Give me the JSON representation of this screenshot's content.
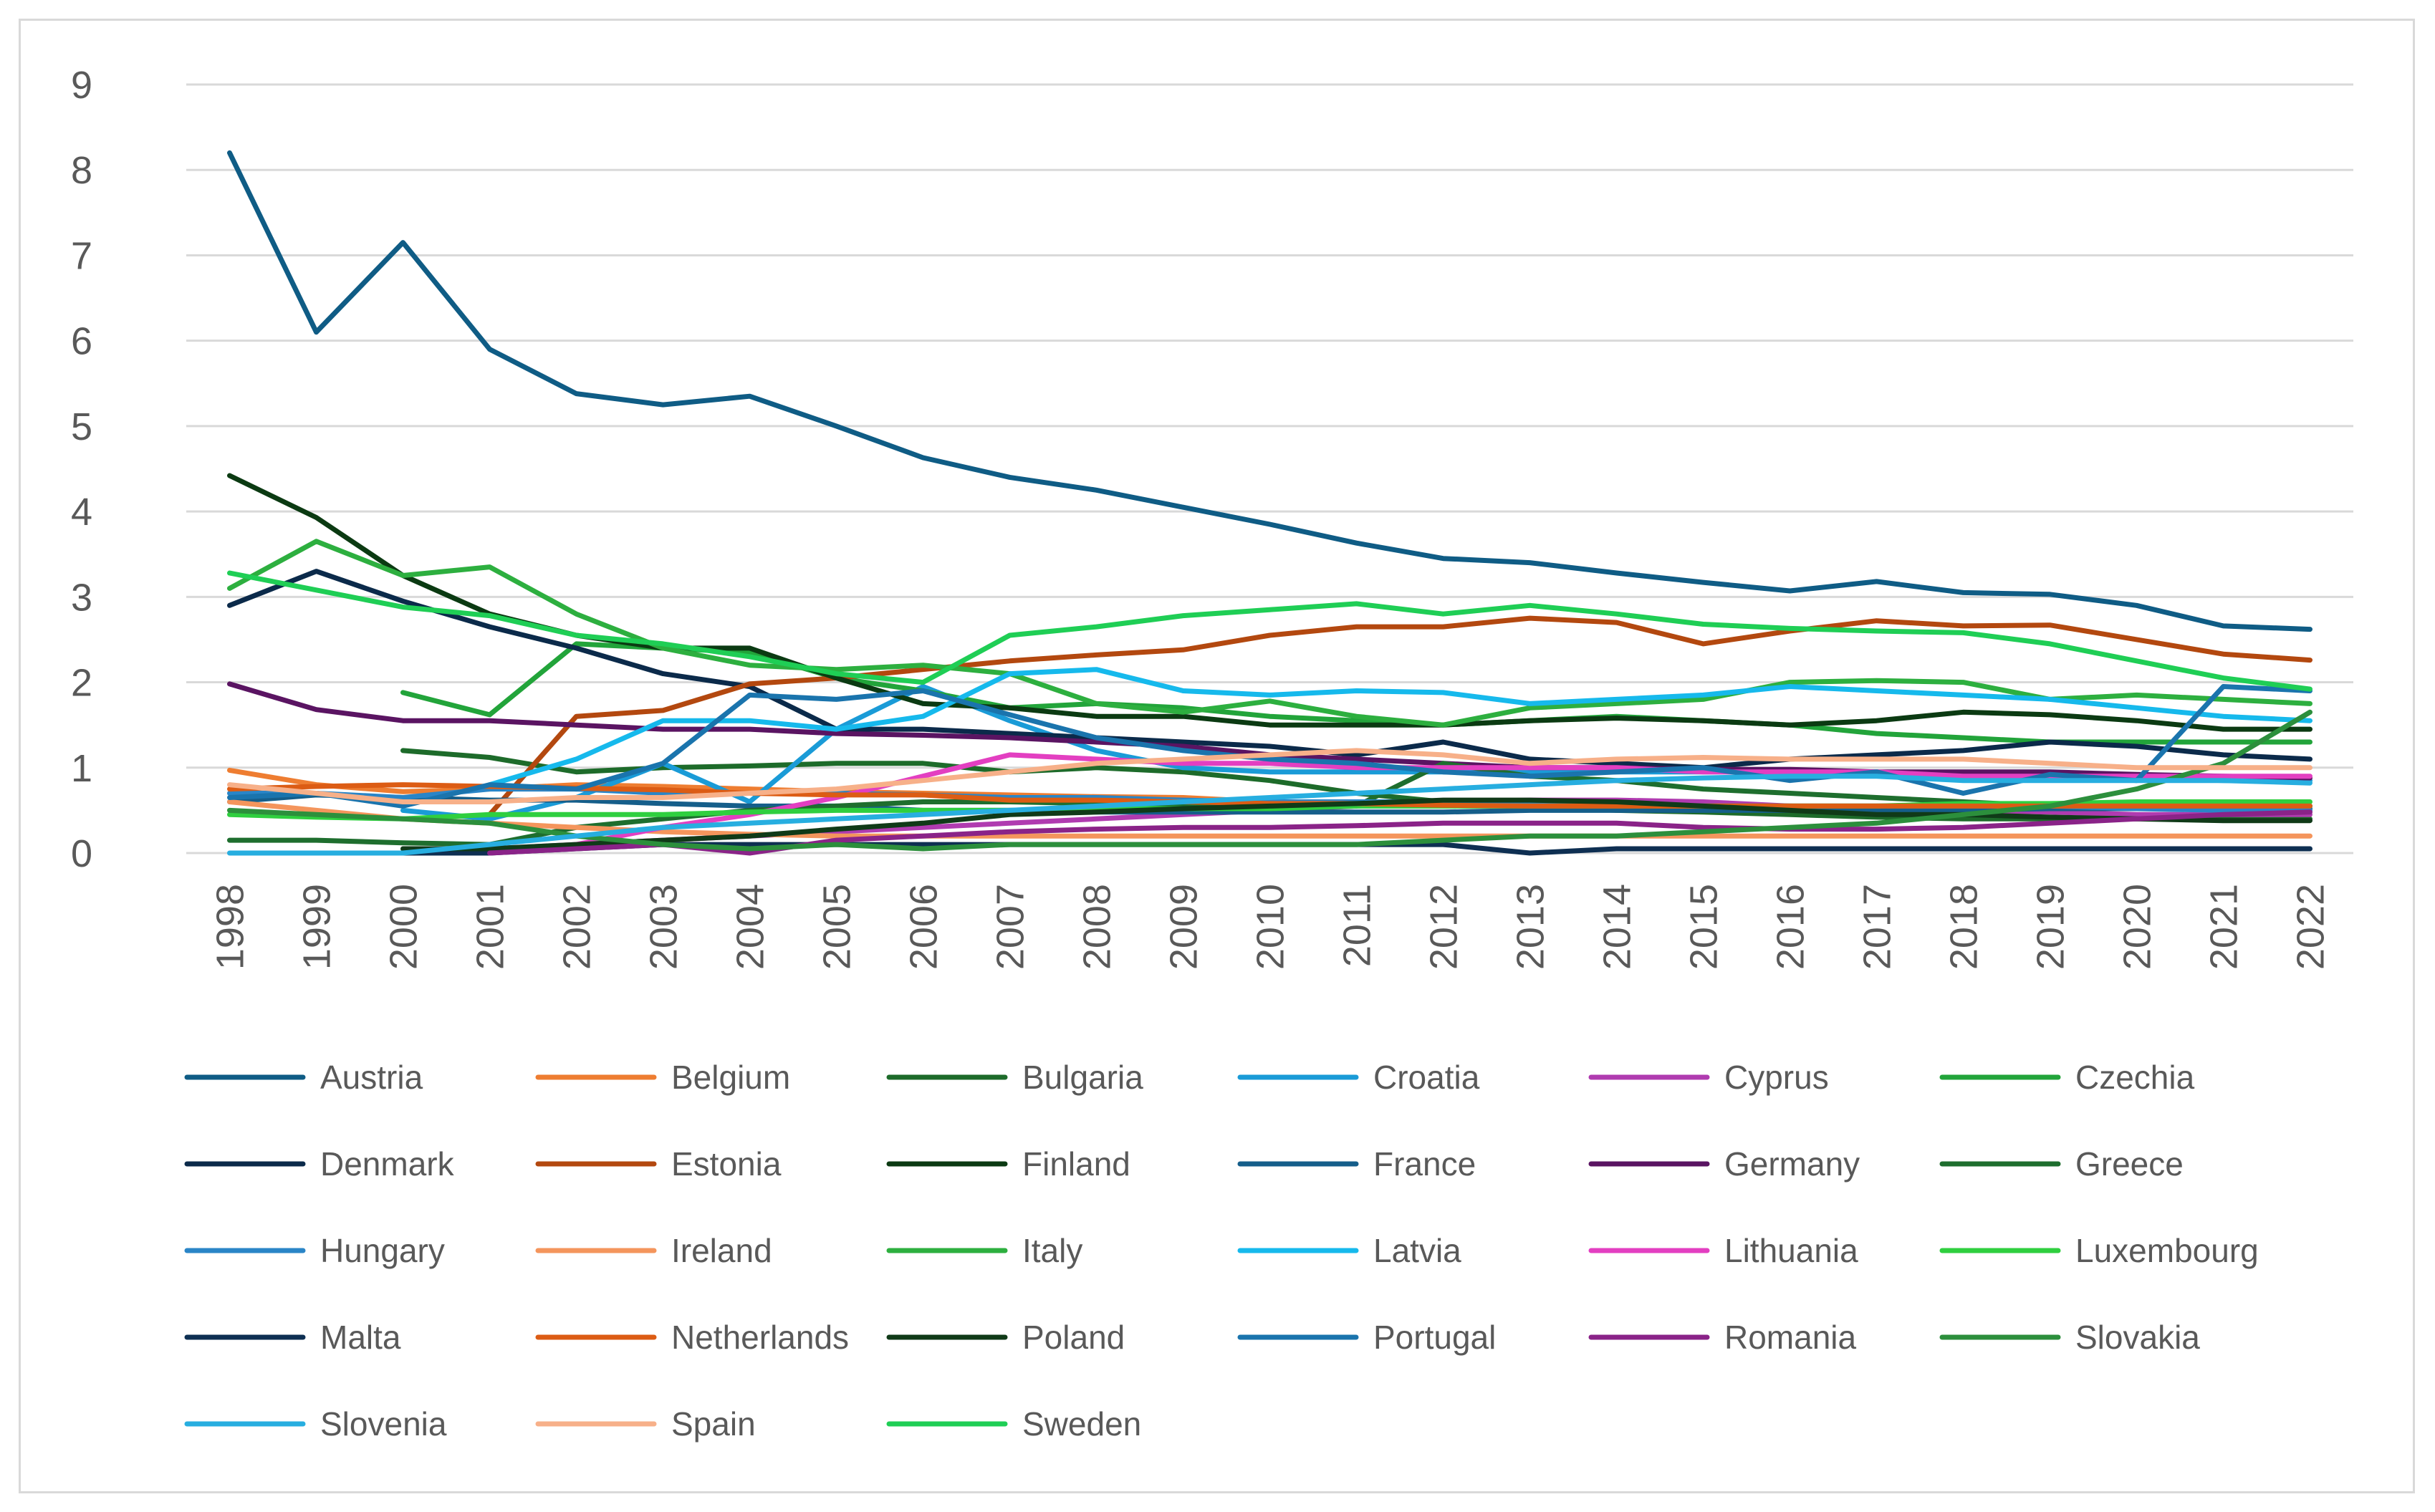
{
  "chart_data": {
    "type": "line",
    "title": "",
    "xlabel": "",
    "ylabel": "",
    "ylim": [
      0,
      9
    ],
    "y_ticks": [
      "0",
      "1",
      "2",
      "3",
      "4",
      "5",
      "6",
      "7",
      "8",
      "9"
    ],
    "x": [
      "1998",
      "1999",
      "2000",
      "2001",
      "2002",
      "2003",
      "2004",
      "2005",
      "2006",
      "2007",
      "2008",
      "2009",
      "2010",
      "2011",
      "2012",
      "2013",
      "2014",
      "2015",
      "2016",
      "2017",
      "2018",
      "2019",
      "2020",
      "2021",
      "2022"
    ],
    "grid": true,
    "legend_position": "bottom",
    "series": [
      {
        "name": "Austria",
        "color": "#0f5c85",
        "values": [
          8.2,
          6.1,
          7.15,
          5.9,
          5.38,
          5.25,
          5.35,
          5.0,
          4.63,
          4.4,
          4.25,
          4.05,
          3.85,
          3.63,
          3.45,
          3.4,
          3.28,
          3.17,
          3.07,
          3.18,
          3.05,
          3.03,
          2.9,
          2.66,
          2.62
        ]
      },
      {
        "name": "Belgium",
        "color": "#ee7d31",
        "values": [
          0.97,
          0.8,
          0.72,
          0.75,
          0.8,
          0.78,
          0.75,
          0.72,
          0.7,
          0.68,
          0.66,
          0.65,
          0.6,
          0.58,
          0.57,
          0.56,
          0.56,
          0.55,
          0.55,
          0.55,
          0.55,
          0.55,
          0.55,
          0.55,
          0.55
        ]
      },
      {
        "name": "Bulgaria",
        "color": "#1d6b2a",
        "values": [
          null,
          null,
          1.2,
          1.12,
          0.95,
          1.0,
          1.02,
          1.05,
          1.05,
          0.95,
          1.0,
          0.95,
          0.85,
          0.7,
          0.6,
          0.55,
          0.5,
          0.48,
          0.45,
          0.42,
          0.4,
          0.4,
          0.4,
          0.4,
          0.4
        ]
      },
      {
        "name": "Croatia",
        "color": "#1a9bd7",
        "values": [
          null,
          null,
          0.5,
          0.4,
          0.65,
          1.05,
          0.6,
          1.45,
          1.95,
          1.55,
          1.2,
          1.0,
          0.95,
          0.95,
          0.95,
          0.95,
          0.95,
          0.95,
          0.95,
          0.92,
          0.9,
          0.9,
          0.88,
          0.85,
          0.85
        ]
      },
      {
        "name": "Cyprus",
        "color": "#b03bb0",
        "values": [
          null,
          null,
          null,
          0.05,
          0.1,
          0.15,
          0.2,
          0.25,
          0.3,
          0.35,
          0.4,
          0.45,
          0.5,
          0.55,
          0.6,
          0.62,
          0.62,
          0.6,
          0.55,
          0.52,
          0.5,
          0.48,
          0.45,
          0.45,
          0.45
        ]
      },
      {
        "name": "Czechia",
        "color": "#22a43a",
        "values": [
          null,
          null,
          1.88,
          1.62,
          2.45,
          2.4,
          2.35,
          2.05,
          1.9,
          1.7,
          1.75,
          1.7,
          1.6,
          1.55,
          1.5,
          1.55,
          1.6,
          1.55,
          1.5,
          1.4,
          1.35,
          1.3,
          1.3,
          1.3,
          1.3
        ]
      },
      {
        "name": "Denmark",
        "color": "#0b2a4a",
        "values": [
          2.9,
          3.3,
          2.95,
          2.65,
          2.4,
          2.1,
          1.95,
          1.45,
          1.45,
          1.4,
          1.35,
          1.3,
          1.25,
          1.15,
          1.3,
          1.1,
          1.05,
          1.0,
          1.1,
          1.15,
          1.2,
          1.3,
          1.25,
          1.15,
          1.1
        ]
      },
      {
        "name": "Estonia",
        "color": "#b3480f",
        "values": [
          null,
          null,
          null,
          0.45,
          1.6,
          1.67,
          1.98,
          2.05,
          2.15,
          2.25,
          2.32,
          2.38,
          2.55,
          2.65,
          2.65,
          2.75,
          2.7,
          2.45,
          2.6,
          2.72,
          2.66,
          2.67,
          2.5,
          2.33,
          2.26
        ]
      },
      {
        "name": "Finland",
        "color": "#0b3a12",
        "values": [
          4.42,
          3.93,
          3.25,
          2.8,
          2.55,
          2.4,
          2.4,
          2.05,
          1.75,
          1.7,
          1.6,
          1.6,
          1.5,
          1.5,
          1.5,
          1.55,
          1.58,
          1.55,
          1.5,
          1.55,
          1.65,
          1.62,
          1.55,
          1.45,
          1.45
        ]
      },
      {
        "name": "France",
        "color": "#155e8a",
        "values": [
          0.6,
          0.68,
          0.65,
          0.62,
          0.62,
          0.58,
          0.55,
          0.55,
          0.5,
          0.5,
          0.48,
          0.48,
          0.48,
          0.48,
          0.48,
          0.5,
          0.5,
          0.5,
          0.5,
          0.5,
          0.5,
          0.52,
          0.52,
          0.52,
          0.52
        ]
      },
      {
        "name": "Germany",
        "color": "#5a1462",
        "values": [
          1.98,
          1.68,
          1.55,
          1.55,
          1.5,
          1.45,
          1.45,
          1.4,
          1.38,
          1.35,
          1.3,
          1.25,
          1.15,
          1.1,
          1.05,
          1.0,
          1.0,
          0.98,
          0.98,
          0.95,
          0.95,
          0.95,
          0.92,
          0.9,
          0.88
        ]
      },
      {
        "name": "Greece",
        "color": "#1e6e2e",
        "values": [
          0.15,
          0.15,
          0.12,
          0.1,
          0.3,
          0.4,
          0.5,
          0.55,
          0.6,
          0.6,
          0.58,
          0.55,
          0.55,
          0.55,
          1.05,
          0.9,
          0.85,
          0.75,
          0.7,
          0.65,
          0.6,
          0.55,
          0.55,
          0.55,
          0.55
        ]
      },
      {
        "name": "Hungary",
        "color": "#2a85c7",
        "values": [
          0.7,
          0.7,
          0.65,
          0.75,
          0.75,
          0.7,
          0.7,
          0.7,
          0.68,
          0.65,
          0.65,
          0.62,
          0.6,
          0.6,
          0.6,
          0.6,
          0.58,
          0.55,
          0.55,
          0.55,
          0.55,
          0.55,
          0.52,
          0.5,
          0.5
        ]
      },
      {
        "name": "Ireland",
        "color": "#f4955c",
        "values": [
          0.6,
          0.5,
          0.4,
          0.35,
          0.3,
          0.25,
          0.22,
          0.2,
          0.2,
          0.2,
          0.2,
          0.2,
          0.2,
          0.2,
          0.2,
          0.2,
          0.2,
          0.2,
          0.2,
          0.2,
          0.2,
          0.2,
          0.2,
          0.2,
          0.2
        ]
      },
      {
        "name": "Italy",
        "color": "#2daf3f",
        "values": [
          3.1,
          3.65,
          3.25,
          3.35,
          2.8,
          2.4,
          2.2,
          2.15,
          2.2,
          2.1,
          1.75,
          1.65,
          1.78,
          1.6,
          1.5,
          1.7,
          1.75,
          1.8,
          2.0,
          2.02,
          2.0,
          1.8,
          1.85,
          1.8,
          1.75
        ]
      },
      {
        "name": "Latvia",
        "color": "#16b9ec",
        "values": [
          null,
          null,
          null,
          0.8,
          1.1,
          1.55,
          1.55,
          1.45,
          1.6,
          2.1,
          2.15,
          1.9,
          1.85,
          1.9,
          1.88,
          1.75,
          1.8,
          1.85,
          1.95,
          1.9,
          1.85,
          1.8,
          1.7,
          1.6,
          1.55
        ]
      },
      {
        "name": "Lithuania",
        "color": "#e33fc1",
        "values": [
          null,
          null,
          null,
          0.0,
          0.1,
          0.3,
          0.45,
          0.65,
          0.9,
          1.15,
          1.1,
          1.05,
          1.05,
          1.0,
          1.0,
          1.0,
          1.0,
          0.95,
          0.95,
          0.95,
          0.9,
          0.9,
          0.9,
          0.9,
          0.9
        ]
      },
      {
        "name": "Luxembourg",
        "color": "#2fcf3f",
        "values": [
          0.45,
          0.42,
          0.4,
          0.45,
          0.45,
          0.45,
          0.48,
          0.5,
          0.5,
          0.5,
          0.52,
          0.52,
          0.52,
          0.55,
          0.55,
          0.55,
          0.55,
          0.55,
          0.55,
          0.55,
          0.58,
          0.58,
          0.6,
          0.6,
          0.6
        ]
      },
      {
        "name": "Malta",
        "color": "#0e2f52",
        "values": [
          null,
          null,
          0.0,
          0.0,
          0.05,
          0.1,
          0.1,
          0.1,
          0.1,
          0.1,
          0.1,
          0.1,
          0.1,
          0.1,
          0.1,
          0.0,
          0.05,
          0.05,
          0.05,
          0.05,
          0.05,
          0.05,
          0.05,
          0.05,
          0.05
        ]
      },
      {
        "name": "Netherlands",
        "color": "#dc5c14",
        "values": [
          0.75,
          0.78,
          0.8,
          0.78,
          0.76,
          0.74,
          0.7,
          0.68,
          0.68,
          0.62,
          0.62,
          0.6,
          0.58,
          0.58,
          0.56,
          0.55,
          0.55,
          0.55,
          0.55,
          0.55,
          0.55,
          0.55,
          0.55,
          0.55,
          0.55
        ]
      },
      {
        "name": "Poland",
        "color": "#103a18",
        "values": [
          null,
          null,
          0.05,
          0.05,
          0.1,
          0.15,
          0.2,
          0.28,
          0.35,
          0.45,
          0.48,
          0.52,
          0.55,
          0.58,
          0.62,
          0.62,
          0.6,
          0.55,
          0.5,
          0.45,
          0.45,
          0.42,
          0.4,
          0.38,
          0.38
        ]
      },
      {
        "name": "Portugal",
        "color": "#1a74ad",
        "values": [
          0.65,
          0.7,
          0.55,
          0.8,
          0.75,
          1.05,
          1.85,
          1.8,
          1.9,
          1.62,
          1.35,
          1.2,
          1.1,
          1.05,
          0.95,
          0.9,
          0.95,
          1.0,
          0.85,
          0.95,
          0.7,
          0.92,
          0.85,
          1.95,
          1.9
        ]
      },
      {
        "name": "Romania",
        "color": "#8a2388",
        "values": [
          null,
          null,
          null,
          0.0,
          0.05,
          0.1,
          0.0,
          0.15,
          0.2,
          0.25,
          0.28,
          0.3,
          0.3,
          0.32,
          0.35,
          0.35,
          0.35,
          0.3,
          0.28,
          0.28,
          0.3,
          0.35,
          0.4,
          0.45,
          0.48
        ]
      },
      {
        "name": "Slovakia",
        "color": "#2c8f3c",
        "values": [
          0.5,
          0.45,
          0.4,
          0.35,
          0.2,
          0.1,
          0.05,
          0.1,
          0.05,
          0.1,
          0.1,
          0.1,
          0.1,
          0.1,
          0.15,
          0.2,
          0.2,
          0.25,
          0.3,
          0.35,
          0.45,
          0.55,
          0.75,
          1.05,
          1.65
        ]
      },
      {
        "name": "Slovenia",
        "color": "#27aee0",
        "values": [
          0.0,
          0.0,
          0.0,
          0.1,
          0.2,
          0.3,
          0.35,
          0.4,
          0.45,
          0.5,
          0.55,
          0.6,
          0.65,
          0.7,
          0.75,
          0.8,
          0.85,
          0.88,
          0.9,
          0.9,
          0.85,
          0.85,
          0.85,
          0.85,
          0.82
        ]
      },
      {
        "name": "Spain",
        "color": "#f7b089",
        "values": [
          0.8,
          0.7,
          0.6,
          0.6,
          0.65,
          0.65,
          0.7,
          0.75,
          0.85,
          0.95,
          1.05,
          1.1,
          1.15,
          1.2,
          1.15,
          1.05,
          1.1,
          1.12,
          1.1,
          1.1,
          1.1,
          1.05,
          1.0,
          1.0,
          1.0
        ]
      },
      {
        "name": "Sweden",
        "color": "#1fce55",
        "values": [
          3.28,
          3.08,
          2.88,
          2.78,
          2.55,
          2.45,
          2.3,
          2.1,
          2.0,
          2.55,
          2.65,
          2.78,
          2.85,
          2.92,
          2.8,
          2.9,
          2.8,
          2.68,
          2.63,
          2.6,
          2.58,
          2.45,
          2.25,
          2.05,
          1.92
        ]
      }
    ]
  }
}
